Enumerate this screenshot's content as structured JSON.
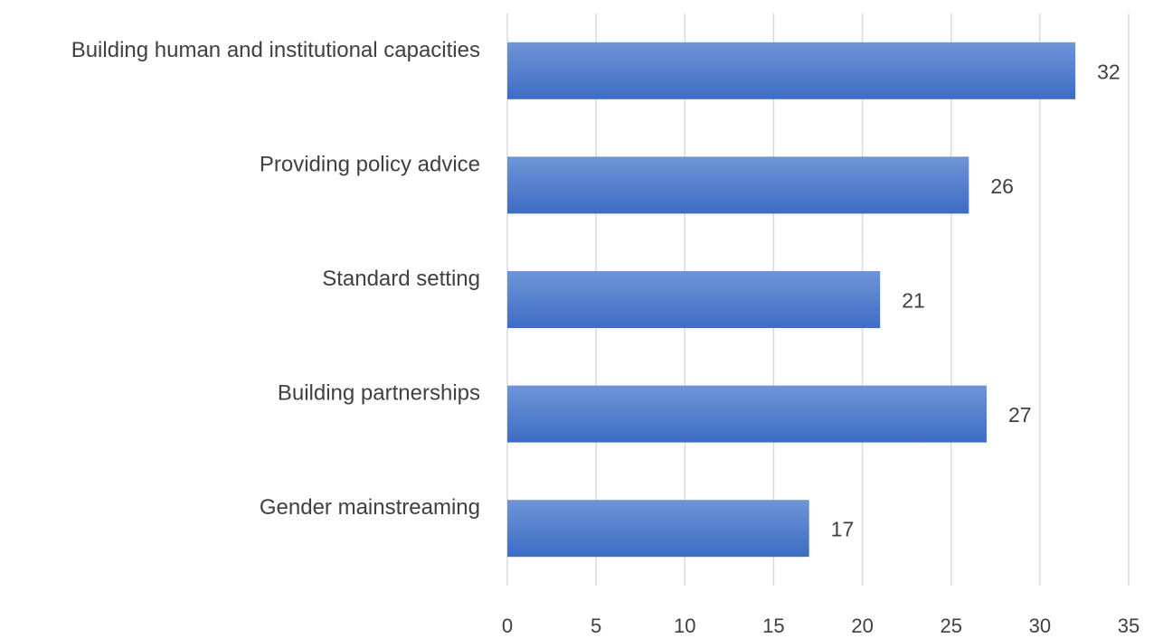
{
  "chart_data": {
    "type": "bar",
    "orientation": "horizontal",
    "categories": [
      "Building human and institutional capacities",
      "Providing policy advice",
      "Standard setting",
      "Building partnerships",
      "Gender mainstreaming"
    ],
    "values": [
      32,
      26,
      21,
      27,
      17
    ],
    "xlim": [
      0,
      35
    ],
    "xticks": [
      "0",
      "5",
      "10",
      "15",
      "20",
      "25",
      "30",
      "35"
    ],
    "grid": true,
    "legend": "none",
    "bar_color_top": "#6f95d6",
    "bar_color_bottom": "#3d6cc4"
  }
}
